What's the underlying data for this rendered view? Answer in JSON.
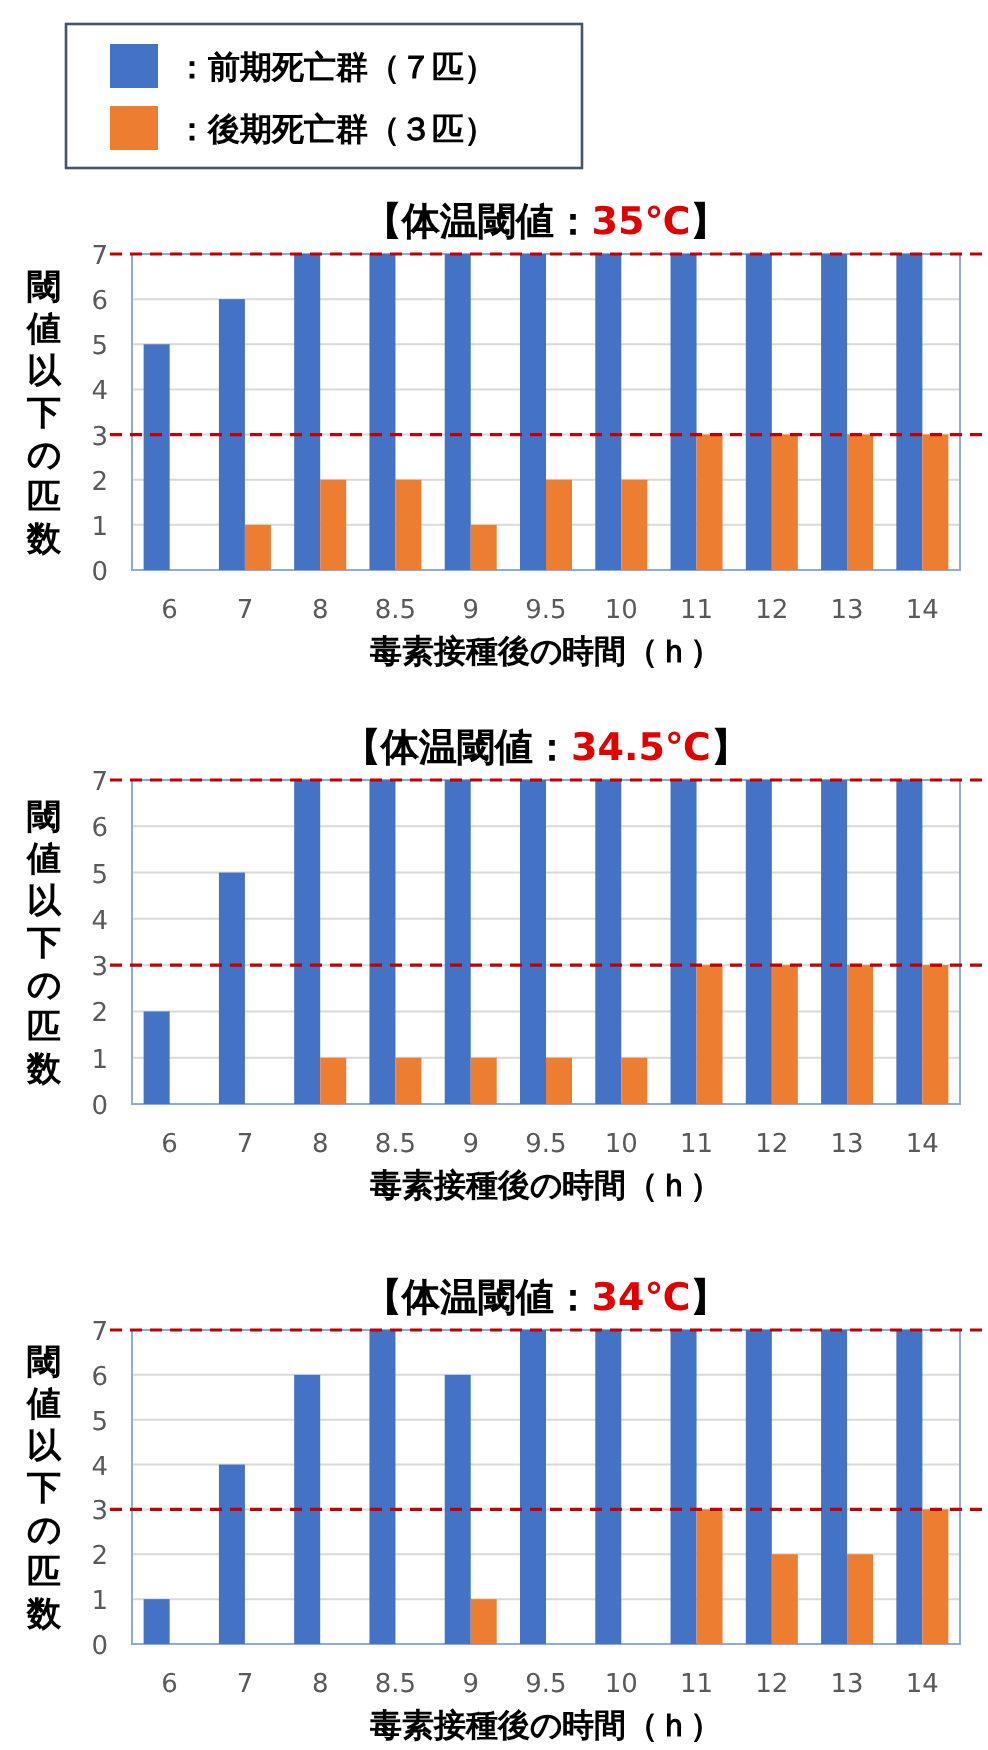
{
  "chart_data": [
    {
      "type": "bar",
      "title": "【体温閾値：35℃】",
      "xlabel": "毒素接種後の時間（ｈ）",
      "ylabel": "閾値以下の匹数",
      "categories": [
        "6",
        "7",
        "8",
        "8.5",
        "9",
        "9.5",
        "10",
        "11",
        "12",
        "13",
        "14"
      ],
      "ylim": [
        0,
        7
      ],
      "yticks": [
        0,
        1,
        2,
        3,
        4,
        5,
        6,
        7
      ],
      "grid": "y",
      "legend": "top left",
      "series": [
        {
          "name": "：前期死亡群（７匹）",
          "color": "#4472c4",
          "values": [
            5,
            6,
            7,
            7,
            7,
            7,
            7,
            7,
            7,
            7,
            7
          ]
        },
        {
          "name": "：後期死亡群（３匹）",
          "color": "#ed7d31",
          "values": [
            0,
            1,
            2,
            2,
            1,
            2,
            2,
            3,
            3,
            3,
            3
          ]
        }
      ],
      "ref_lines": [
        {
          "axis": "y",
          "value": 7,
          "color": "#c00000",
          "line_style": "dashed"
        },
        {
          "axis": "y",
          "value": 3,
          "color": "#c00000",
          "line_style": "dashed"
        }
      ]
    },
    {
      "type": "bar",
      "title": "【体温閾値：34.5℃】",
      "xlabel": "毒素接種後の時間（ｈ）",
      "ylabel": "閾値以下の匹数",
      "categories": [
        "6",
        "7",
        "8",
        "8.5",
        "9",
        "9.5",
        "10",
        "11",
        "12",
        "13",
        "14"
      ],
      "ylim": [
        0,
        7
      ],
      "yticks": [
        0,
        1,
        2,
        3,
        4,
        5,
        6,
        7
      ],
      "grid": "y",
      "series": [
        {
          "color": "#4472c4",
          "values": [
            2,
            5,
            7,
            7,
            7,
            7,
            7,
            7,
            7,
            7,
            7
          ]
        },
        {
          "color": "#ed7d31",
          "values": [
            0,
            0,
            1,
            1,
            1,
            1,
            1,
            3,
            3,
            3,
            3
          ]
        }
      ],
      "ref_lines": [
        {
          "axis": "y",
          "value": 7,
          "color": "#c00000",
          "line_style": "dashed"
        },
        {
          "axis": "y",
          "value": 3,
          "color": "#c00000",
          "line_style": "dashed"
        }
      ]
    },
    {
      "type": "bar",
      "title": "【体温閾値：34℃】",
      "xlabel": "毒素接種後の時間（ｈ）",
      "ylabel": "閾値以下の匹数",
      "categories": [
        "6",
        "7",
        "8",
        "8.5",
        "9",
        "9.5",
        "10",
        "11",
        "12",
        "13",
        "14"
      ],
      "ylim": [
        0,
        7
      ],
      "yticks": [
        0,
        1,
        2,
        3,
        4,
        5,
        6,
        7
      ],
      "grid": "y",
      "series": [
        {
          "color": "#4472c4",
          "values": [
            1,
            4,
            6,
            7,
            6,
            7,
            7,
            7,
            7,
            7,
            7
          ]
        },
        {
          "color": "#ed7d31",
          "values": [
            0,
            0,
            0,
            0,
            1,
            0,
            0,
            3,
            2,
            2,
            3
          ]
        }
      ],
      "ref_lines": [
        {
          "axis": "y",
          "value": 7,
          "color": "#c00000",
          "line_style": "dashed"
        },
        {
          "axis": "y",
          "value": 3,
          "color": "#c00000",
          "line_style": "dashed"
        }
      ]
    }
  ]
}
